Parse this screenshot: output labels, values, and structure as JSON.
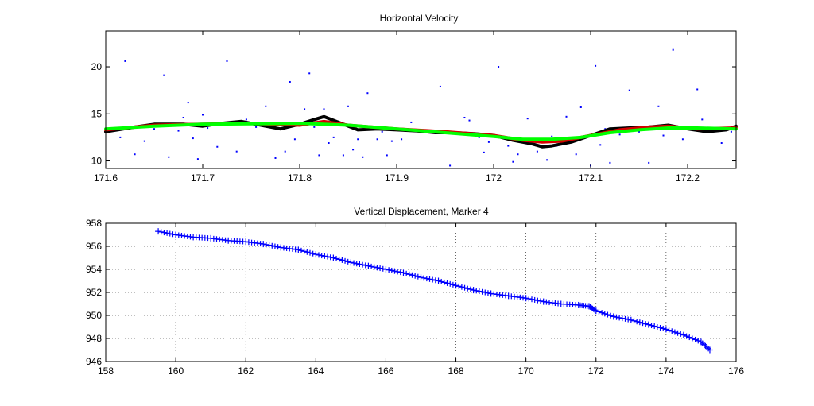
{
  "colors": {
    "background": "#ffffff",
    "axes": "#000000",
    "grid": "#000000",
    "scatter": "#0000ff",
    "line_black": "#000000",
    "line_red": "#d40000",
    "line_green": "#00ff00"
  },
  "chart_data": [
    {
      "type": "line",
      "title": "Horizontal Velocity",
      "xlabel": "",
      "ylabel": "",
      "xlim": [
        171.6,
        172.25
      ],
      "ylim": [
        9.2,
        23.8
      ],
      "grid": false,
      "xticks": [
        171.6,
        171.7,
        171.8,
        171.9,
        172.0,
        172.1,
        172.2
      ],
      "xtick_labels": [
        "171.6",
        "171.7",
        "171.8",
        "171.9",
        "172",
        "172.1",
        "172.2"
      ],
      "yticks": [
        10,
        15,
        20
      ],
      "ytick_labels": [
        "10",
        "15",
        "20"
      ],
      "series": [
        {
          "style": "scatter",
          "color": "#0000ff",
          "x": [
            171.605,
            171.615,
            171.62,
            171.63,
            171.64,
            171.65,
            171.66,
            171.665,
            171.675,
            171.68,
            171.685,
            171.69,
            171.695,
            171.7,
            171.705,
            171.715,
            171.725,
            171.735,
            171.745,
            171.755,
            171.765,
            171.775,
            171.785,
            171.79,
            171.795,
            171.805,
            171.81,
            171.815,
            171.82,
            171.825,
            171.83,
            171.835,
            171.84,
            171.845,
            171.85,
            171.855,
            171.86,
            171.865,
            171.87,
            171.875,
            171.88,
            171.885,
            171.89,
            171.895,
            171.9,
            171.905,
            171.915,
            171.925,
            171.935,
            171.945,
            171.955,
            171.965,
            171.97,
            171.975,
            171.985,
            171.99,
            171.995,
            172.005,
            172.015,
            172.02,
            172.025,
            172.035,
            172.045,
            172.055,
            172.06,
            172.065,
            172.075,
            172.085,
            172.09,
            172.1,
            172.105,
            172.11,
            172.115,
            172.12,
            172.13,
            172.14,
            172.15,
            172.16,
            172.17,
            172.175,
            172.185,
            172.195,
            172.2,
            172.21,
            172.215,
            172.225,
            172.235,
            172.245
          ],
          "values": [
            13.5,
            12.5,
            20.6,
            10.7,
            12.1,
            13.4,
            19.1,
            10.4,
            13.2,
            14.6,
            16.2,
            12.4,
            10.2,
            14.9,
            13.5,
            11.5,
            20.6,
            11.0,
            14.4,
            13.6,
            15.8,
            10.3,
            11.0,
            18.4,
            12.3,
            15.5,
            19.3,
            13.6,
            10.6,
            15.5,
            11.9,
            12.5,
            14.2,
            10.6,
            15.8,
            11.2,
            12.3,
            10.4,
            17.2,
            13.4,
            12.3,
            13.1,
            10.6,
            12.1,
            13.3,
            12.3,
            14.1,
            13.1,
            13.1,
            17.9,
            9.5,
            13.0,
            14.6,
            14.3,
            12.5,
            10.9,
            12.0,
            20.0,
            11.6,
            9.9,
            10.7,
            14.5,
            11.0,
            10.1,
            12.6,
            11.6,
            14.7,
            10.7,
            15.7,
            9.5,
            20.1,
            11.7,
            13.4,
            9.8,
            12.8,
            17.5,
            13.1,
            9.8,
            15.8,
            12.7,
            21.8,
            12.3,
            13.4,
            17.6,
            14.4,
            13.0,
            11.9,
            13.1
          ]
        },
        {
          "style": "line",
          "color": "#000000",
          "x": [
            171.6,
            171.63,
            171.65,
            171.68,
            171.7,
            171.72,
            171.74,
            171.76,
            171.78,
            171.8,
            171.815,
            171.825,
            171.84,
            171.86,
            171.88,
            171.9,
            171.92,
            171.94,
            171.96,
            171.98,
            172.0,
            172.02,
            172.04,
            172.05,
            172.06,
            172.08,
            172.1,
            172.12,
            172.14,
            172.16,
            172.18,
            172.2,
            172.22,
            172.24,
            172.25
          ],
          "values": [
            13.1,
            13.6,
            13.9,
            13.9,
            13.7,
            14.0,
            14.2,
            13.8,
            13.4,
            13.9,
            14.4,
            14.7,
            14.1,
            13.3,
            13.4,
            13.3,
            13.2,
            13.0,
            13.0,
            12.9,
            12.7,
            12.2,
            11.8,
            11.5,
            11.6,
            12.0,
            12.7,
            13.4,
            13.5,
            13.6,
            13.8,
            13.4,
            13.1,
            13.3,
            13.7
          ]
        },
        {
          "style": "line",
          "color": "#d40000",
          "x": [
            171.6,
            171.65,
            171.7,
            171.75,
            171.8,
            171.825,
            171.85,
            171.9,
            171.95,
            172.0,
            172.03,
            172.05,
            172.07,
            172.1,
            172.13,
            172.16,
            172.18,
            172.21,
            172.25
          ],
          "values": [
            13.3,
            13.8,
            13.9,
            14.0,
            13.8,
            14.2,
            13.8,
            13.4,
            13.1,
            12.7,
            12.2,
            12.0,
            12.1,
            12.7,
            13.3,
            13.6,
            13.7,
            13.4,
            13.5
          ]
        },
        {
          "style": "line",
          "color": "#00ff00",
          "x": [
            171.6,
            171.65,
            171.7,
            171.75,
            171.8,
            171.85,
            171.9,
            171.95,
            172.0,
            172.03,
            172.06,
            172.09,
            172.12,
            172.15,
            172.18,
            172.21,
            172.25
          ],
          "values": [
            13.4,
            13.7,
            13.9,
            13.95,
            14.0,
            13.8,
            13.4,
            13.0,
            12.6,
            12.3,
            12.3,
            12.5,
            13.0,
            13.3,
            13.5,
            13.5,
            13.4
          ]
        }
      ]
    },
    {
      "type": "scatter",
      "title": "Vertical Displacement, Marker 4",
      "xlabel": "",
      "ylabel": "",
      "xlim": [
        158,
        176
      ],
      "ylim": [
        946,
        958
      ],
      "grid": true,
      "marker": "+",
      "xticks": [
        158,
        160,
        162,
        164,
        166,
        168,
        170,
        172,
        174,
        176
      ],
      "xtick_labels": [
        "158",
        "160",
        "162",
        "164",
        "166",
        "168",
        "170",
        "172",
        "174",
        "176"
      ],
      "yticks": [
        946,
        948,
        950,
        952,
        954,
        956,
        958
      ],
      "ytick_labels": [
        "946",
        "948",
        "950",
        "952",
        "954",
        "956",
        "958"
      ],
      "series": [
        {
          "color": "#0000ff",
          "x": [
            159.5,
            160.0,
            160.5,
            161.0,
            161.5,
            162.0,
            162.5,
            163.0,
            163.5,
            164.0,
            164.5,
            165.0,
            165.5,
            166.0,
            166.5,
            167.0,
            167.5,
            168.0,
            168.5,
            169.0,
            169.5,
            170.0,
            170.5,
            171.0,
            171.5,
            171.8,
            172.0,
            172.5,
            173.0,
            173.5,
            174.0,
            174.5,
            175.0,
            175.25
          ],
          "values": [
            957.3,
            957.0,
            956.8,
            956.7,
            956.5,
            956.4,
            956.2,
            955.9,
            955.7,
            955.3,
            955.0,
            954.6,
            954.3,
            954.0,
            953.7,
            953.3,
            953.0,
            952.6,
            952.2,
            951.9,
            951.7,
            951.5,
            951.2,
            951.0,
            950.9,
            950.8,
            950.4,
            949.9,
            949.6,
            949.2,
            948.8,
            948.3,
            947.7,
            947.0
          ]
        }
      ]
    }
  ]
}
